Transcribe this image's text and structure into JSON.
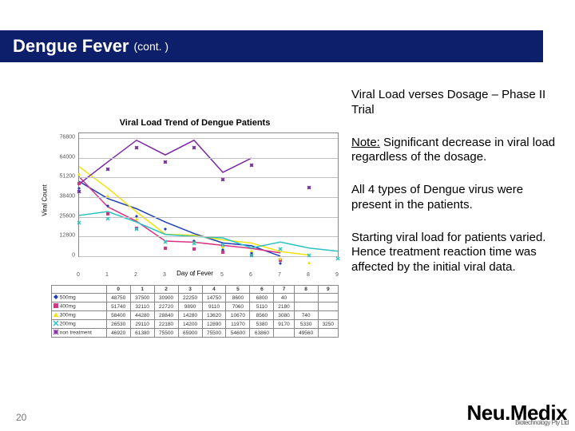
{
  "header": {
    "title_main": "Dengue Fever",
    "title_sub": "(cont. )"
  },
  "right": {
    "heading": "Viral Load verses Dosage – Phase II Trial",
    "note_label": "Note:",
    "note_rest": " Significant decrease in viral load regardless of the dosage.",
    "p2": "All 4 types of Dengue virus were present in the patients.",
    "p3": "Starting viral load for patients varied.  Hence treatment reaction time was affected by the initial viral data."
  },
  "footer": {
    "page": "20",
    "logo_a": "Neu.",
    "logo_b": "Medix",
    "logo_sub": "Biotechnology Pty Ltd"
  },
  "chart": {
    "type": "line",
    "title": "Viral Load Trend of Dengue Patients",
    "x_label": "Day of Fever",
    "y_label": "Viral Count",
    "x_categories": [
      "0",
      "1",
      "2",
      "3",
      "4",
      "5",
      "6",
      "7",
      "8",
      "9"
    ],
    "y_ticks": [
      0,
      12800,
      25600,
      38400,
      51200,
      64000,
      76800
    ],
    "ylim": [
      0,
      80000
    ],
    "xlim": [
      0,
      9
    ],
    "background_color": "#ffffff",
    "grid_color": "#c0c0c0",
    "tick_fontsize": 7,
    "title_fontsize": 11,
    "line_width": 1.5,
    "marker_size": 4,
    "series": [
      {
        "name": "500mg",
        "color": "#1f3fb5",
        "marker": "diamond",
        "values": [
          48750,
          37500,
          30900,
          22250,
          14750,
          8600,
          6800,
          40,
          null,
          null
        ]
      },
      {
        "name": "400mg",
        "color": "#d63384",
        "marker": "square",
        "values": [
          51740,
          32110,
          22720,
          9890,
          9110,
          7060,
          5110,
          2180,
          null,
          null
        ]
      },
      {
        "name": "300mg",
        "color": "#f2e20a",
        "marker": "triangle",
        "values": [
          58400,
          44280,
          28840,
          14280,
          13620,
          10670,
          8560,
          3080,
          740,
          null
        ]
      },
      {
        "name": "200mg",
        "color": "#2bc2c2",
        "marker": "x",
        "values": [
          26530,
          29110,
          22180,
          14200,
          12890,
          11970,
          5380,
          9170,
          5330,
          3250
        ]
      },
      {
        "name": "non treatment",
        "color": "#7a2aa5",
        "marker": "star",
        "values": [
          46920,
          61380,
          75500,
          65900,
          75500,
          54600,
          63860,
          null,
          49560,
          null
        ]
      }
    ]
  }
}
